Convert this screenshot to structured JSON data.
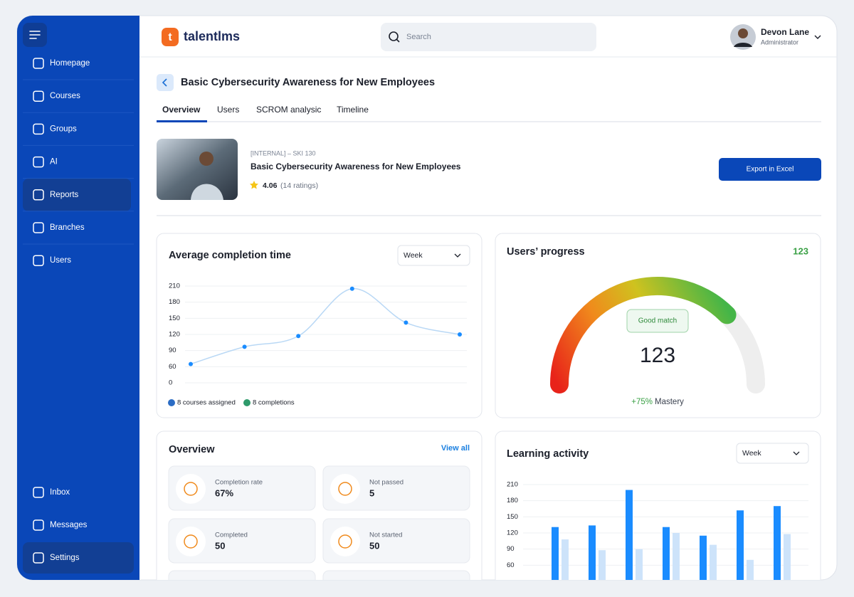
{
  "sidebar": {
    "items": [
      "Homepage",
      "Courses",
      "Groups",
      "AI",
      "Reports",
      "Branches",
      "Users"
    ],
    "bottom_items": [
      "Inbox",
      "Messages",
      "Settings"
    ]
  },
  "header": {
    "logo": "talentlms",
    "search_placeholder": "Search",
    "user_name": "Devon Lane",
    "user_role": "Administrator"
  },
  "page": {
    "title": "Basic Cybersecurity Awareness for New Employees",
    "tabs": [
      "Overview",
      "Users",
      "SCROM analysic",
      "Timeline"
    ]
  },
  "course": {
    "code": "[INTERNAL] – SKI 130",
    "title": "Basic Cybersecurity Awareness for New Employees",
    "rating": "4.06",
    "ratings_count": "(14 ratings)",
    "export_button": "Export in Excel"
  },
  "chart_data": [
    {
      "type": "line",
      "title": "Average completion time",
      "period": "Week",
      "values": [
        65,
        97,
        117,
        205,
        142,
        120
      ],
      "color": "#1a8cff",
      "ylim": [
        0,
        210
      ],
      "yticks": [
        0,
        60,
        90,
        120,
        150,
        180,
        210
      ],
      "grid": true,
      "legend": [
        {
          "label": "8 courses assigned",
          "color": "#2b6cc4"
        },
        {
          "label": "8 completions",
          "color": "#2e9a6b"
        }
      ]
    },
    {
      "type": "bar",
      "title": "Learning activity",
      "period": "Week",
      "series": [
        {
          "color": "#1a8cff",
          "values": [
            131,
            134,
            200,
            131,
            115,
            162,
            170
          ]
        },
        {
          "color": "#cde3fa",
          "values": [
            108,
            88,
            90,
            120,
            98,
            70,
            118
          ]
        }
      ],
      "ylim": [
        0,
        210
      ],
      "yticks": [
        60,
        90,
        120,
        150,
        180,
        210
      ],
      "grid": true
    }
  ],
  "progress": {
    "title": "Users’ progress",
    "value": 123,
    "badge": "Good match",
    "mastery": 75,
    "mastery_label": "+75%",
    "mastery_text": "Mastery"
  },
  "overview": {
    "title": "Overview",
    "view_all": "View all",
    "stats": [
      {
        "label": "Completion rate",
        "value": "67%"
      },
      {
        "label": "Not passed",
        "value": "5"
      },
      {
        "label": "Completed",
        "value": "50"
      },
      {
        "label": "Not started",
        "value": "50"
      }
    ]
  }
}
